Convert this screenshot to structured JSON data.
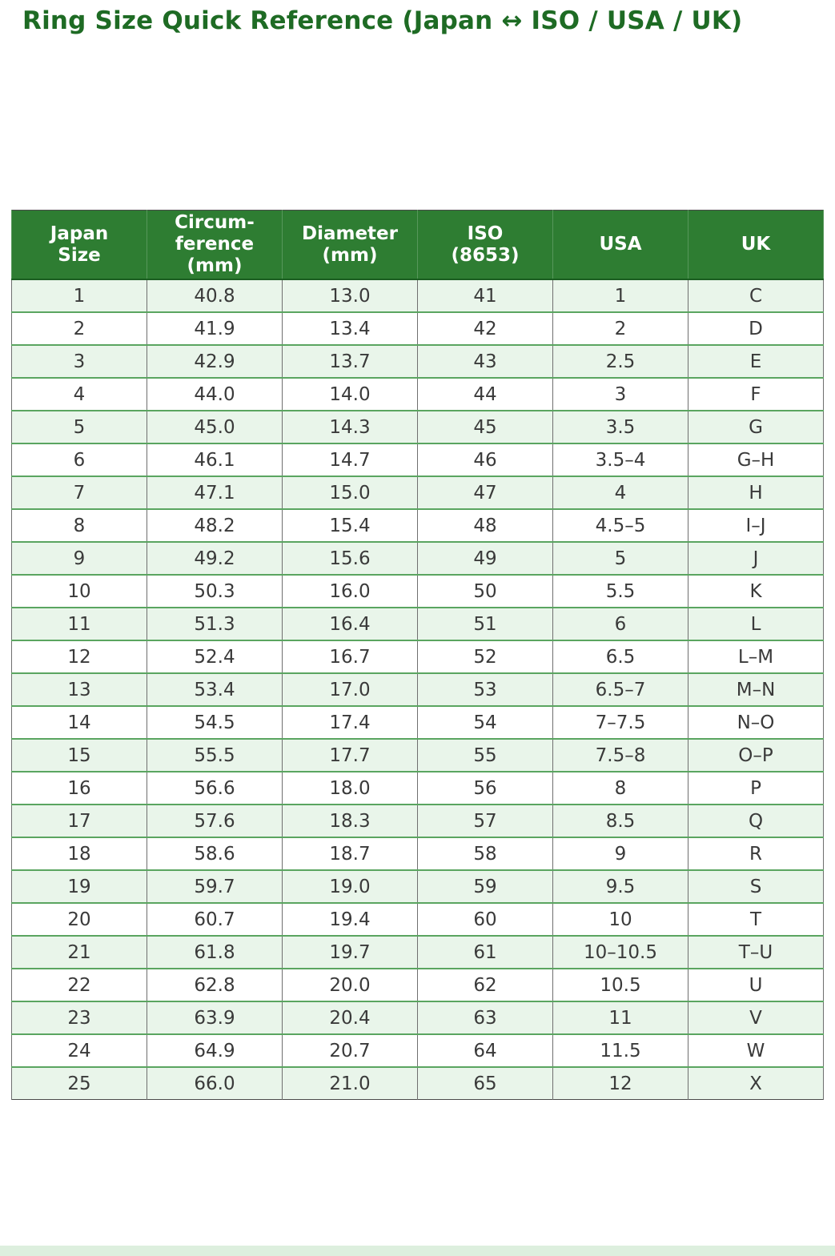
{
  "title": "Ring Size Quick Reference (Japan ↔ ISO / USA / UK)",
  "colors": {
    "title_green": "#1e6b24",
    "header_bg": "#2e7d32",
    "row_stripe": "#e9f5ea",
    "row_line": "#5aa560",
    "cell_text": "#3a3a3a"
  },
  "table": {
    "headers": {
      "japan": "Japan\nSize",
      "circumference": "Circum-\nference\n(mm)",
      "diameter": "Diameter\n(mm)",
      "iso": "ISO\n(8653)",
      "usa": "USA",
      "uk": "UK"
    }
  },
  "chart_data": {
    "type": "table",
    "title": "Ring Size Quick Reference (Japan ↔ ISO / USA / UK)",
    "columns": [
      "Japan Size",
      "Circumference (mm)",
      "Diameter (mm)",
      "ISO (8653)",
      "USA",
      "UK"
    ],
    "rows": [
      [
        "1",
        "40.8",
        "13.0",
        "41",
        "1",
        "C"
      ],
      [
        "2",
        "41.9",
        "13.4",
        "42",
        "2",
        "D"
      ],
      [
        "3",
        "42.9",
        "13.7",
        "43",
        "2.5",
        "E"
      ],
      [
        "4",
        "44.0",
        "14.0",
        "44",
        "3",
        "F"
      ],
      [
        "5",
        "45.0",
        "14.3",
        "45",
        "3.5",
        "G"
      ],
      [
        "6",
        "46.1",
        "14.7",
        "46",
        "3.5–4",
        "G–H"
      ],
      [
        "7",
        "47.1",
        "15.0",
        "47",
        "4",
        "H"
      ],
      [
        "8",
        "48.2",
        "15.4",
        "48",
        "4.5–5",
        "I–J"
      ],
      [
        "9",
        "49.2",
        "15.6",
        "49",
        "5",
        "J"
      ],
      [
        "10",
        "50.3",
        "16.0",
        "50",
        "5.5",
        "K"
      ],
      [
        "11",
        "51.3",
        "16.4",
        "51",
        "6",
        "L"
      ],
      [
        "12",
        "52.4",
        "16.7",
        "52",
        "6.5",
        "L–M"
      ],
      [
        "13",
        "53.4",
        "17.0",
        "53",
        "6.5–7",
        "M–N"
      ],
      [
        "14",
        "54.5",
        "17.4",
        "54",
        "7–7.5",
        "N–O"
      ],
      [
        "15",
        "55.5",
        "17.7",
        "55",
        "7.5–8",
        "O–P"
      ],
      [
        "16",
        "56.6",
        "18.0",
        "56",
        "8",
        "P"
      ],
      [
        "17",
        "57.6",
        "18.3",
        "57",
        "8.5",
        "Q"
      ],
      [
        "18",
        "58.6",
        "18.7",
        "58",
        "9",
        "R"
      ],
      [
        "19",
        "59.7",
        "19.0",
        "59",
        "9.5",
        "S"
      ],
      [
        "20",
        "60.7",
        "19.4",
        "60",
        "10",
        "T"
      ],
      [
        "21",
        "61.8",
        "19.7",
        "61",
        "10–10.5",
        "T–U"
      ],
      [
        "22",
        "62.8",
        "20.0",
        "62",
        "10.5",
        "U"
      ],
      [
        "23",
        "63.9",
        "20.4",
        "63",
        "11",
        "V"
      ],
      [
        "24",
        "64.9",
        "20.7",
        "64",
        "11.5",
        "W"
      ],
      [
        "25",
        "66.0",
        "21.0",
        "65",
        "12",
        "X"
      ]
    ]
  }
}
